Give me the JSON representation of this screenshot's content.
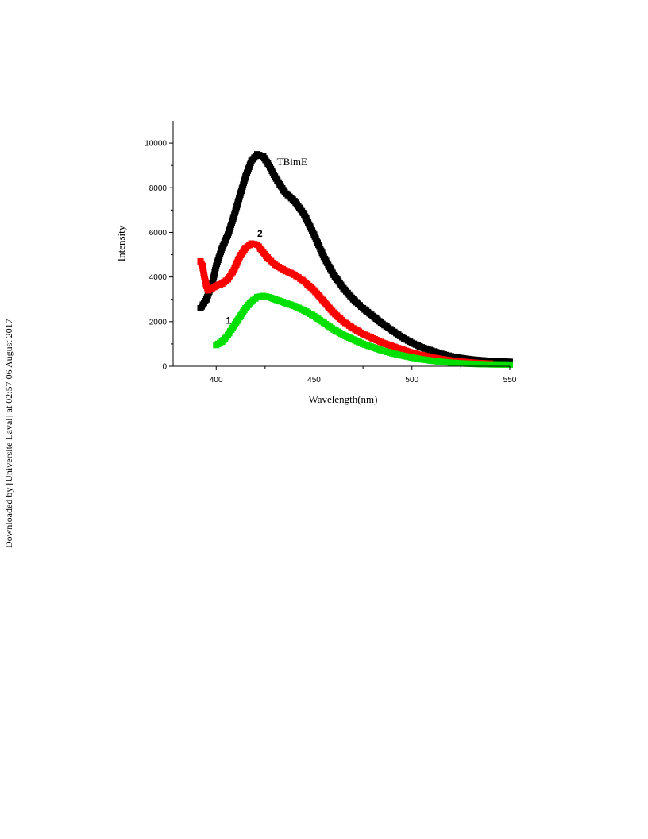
{
  "sidebar_note": "Downloaded by [Universite Laval] at 02:57 06 August 2017",
  "chart_data": {
    "type": "scatter",
    "title": "",
    "xlabel": "Wavelength(nm)",
    "ylabel": "Intensity",
    "xlim": [
      378,
      550
    ],
    "ylim": [
      0,
      11000
    ],
    "x_ticks": [
      400,
      450,
      500,
      550
    ],
    "y_ticks": [
      0,
      2000,
      4000,
      6000,
      8000,
      10000
    ],
    "x_tick_labels": [
      "400",
      "450",
      "500",
      "550"
    ],
    "y_tick_labels": [
      "0",
      "2000",
      "4000",
      "6000",
      "8000",
      "10000"
    ],
    "grid": false,
    "marker": "square",
    "annotations": [
      {
        "text": "TBimE",
        "x": 431,
        "y": 9000,
        "style": "serif"
      },
      {
        "text": "2",
        "x": 421,
        "y": 5800,
        "style": "bold"
      },
      {
        "text": "1",
        "x": 405,
        "y": 1900,
        "style": "bold"
      }
    ],
    "series": [
      {
        "color": "#000000",
        "x": [
          392,
          395,
          398,
          400,
          403,
          406,
          409,
          412,
          415,
          418,
          421,
          424,
          427,
          430,
          435,
          440,
          445,
          450,
          455,
          460,
          465,
          470,
          475,
          480,
          485,
          490,
          495,
          500,
          505,
          510,
          515,
          520,
          525,
          530,
          535,
          540,
          545,
          550
        ],
        "y": [
          2600,
          3000,
          3700,
          4500,
          5300,
          5900,
          6700,
          7600,
          8500,
          9200,
          9500,
          9400,
          9000,
          8500,
          7800,
          7400,
          6800,
          5900,
          4900,
          4100,
          3500,
          3000,
          2600,
          2250,
          1900,
          1600,
          1300,
          1050,
          850,
          700,
          560,
          450,
          370,
          310,
          270,
          240,
          220,
          200
        ]
      },
      {
        "color": "#ff0000",
        "x": [
          392,
          393,
          394,
          395,
          396,
          398,
          400,
          403,
          406,
          409,
          412,
          415,
          418,
          421,
          424,
          427,
          430,
          435,
          440,
          445,
          450,
          455,
          460,
          465,
          470,
          475,
          480,
          485,
          490,
          495,
          500,
          505,
          510,
          515,
          520,
          525,
          530,
          535,
          540
        ],
        "y": [
          4700,
          4500,
          4000,
          3600,
          3400,
          3500,
          3600,
          3700,
          3900,
          4300,
          4900,
          5300,
          5500,
          5450,
          5100,
          4800,
          4550,
          4300,
          4100,
          3800,
          3400,
          2900,
          2400,
          2000,
          1700,
          1450,
          1250,
          1050,
          900,
          750,
          600,
          500,
          400,
          320,
          260,
          210,
          170,
          140,
          120
        ]
      },
      {
        "color": "#00e000",
        "x": [
          400,
          403,
          406,
          409,
          412,
          415,
          418,
          421,
          424,
          427,
          430,
          435,
          440,
          445,
          450,
          455,
          460,
          465,
          470,
          475,
          480,
          485,
          490,
          495,
          500,
          505,
          510,
          515,
          520,
          525,
          530,
          535,
          540,
          545,
          550
        ],
        "y": [
          950,
          1100,
          1400,
          1800,
          2200,
          2600,
          2900,
          3100,
          3150,
          3100,
          3000,
          2850,
          2700,
          2500,
          2250,
          1950,
          1650,
          1400,
          1200,
          1000,
          850,
          700,
          580,
          480,
          390,
          310,
          250,
          200,
          160,
          130,
          110,
          95,
          85,
          80,
          75
        ]
      }
    ]
  }
}
